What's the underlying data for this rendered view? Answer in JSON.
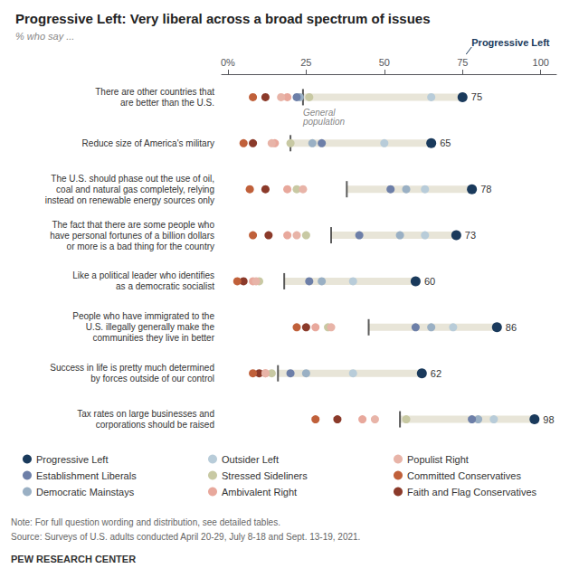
{
  "chart_data": {
    "type": "scatter",
    "orientation": "horizontal",
    "title": "Progressive Left: Very liberal across a broad spectrum of issues",
    "subtitle": "% who say ...",
    "categories": [
      "There are other countries that\nare better than the U.S.",
      "Reduce size of America's military",
      "The U.S. should phase out the use of oil,\ncoal and natural gas completely, relying\ninstead on renewable energy sources only",
      "The fact that there are some people who\nhave personal fortunes of a billion dollars\nor more is a bad thing for the country",
      "Like a political leader who identifies\nas a democratic socialist",
      "People who have immigrated to the\nU.S. illegally generally make the\ncommunities they live in better",
      "Success in life is pretty much determined\nby forces outside of our control",
      "Tax rates on large businesses and\ncorporations should be raised"
    ],
    "series": [
      {
        "name": "Progressive Left",
        "color": "#1a3a5c",
        "data_labels": true,
        "values": [
          75,
          65,
          78,
          73,
          60,
          86,
          62,
          98
        ]
      },
      {
        "name": "Outsider Left",
        "color": "#b8ccd9",
        "values": [
          65,
          50,
          63,
          63,
          40,
          72,
          40,
          85
        ]
      },
      {
        "name": "Populist Right",
        "color": "#e8b4a8",
        "values": [
          17,
          14,
          24,
          22,
          9,
          33,
          12,
          47
        ]
      },
      {
        "name": "Establishment Liberals",
        "color": "#6d7fa8",
        "values": [
          22,
          30,
          52,
          42,
          26,
          60,
          20,
          78
        ]
      },
      {
        "name": "Stressed Sideliners",
        "color": "#c8c9a3",
        "values": [
          26,
          20,
          22,
          25,
          10,
          32,
          14,
          57
        ]
      },
      {
        "name": "Committed Conservatives",
        "color": "#c0603a",
        "values": [
          8,
          5,
          7,
          8,
          3,
          22,
          8,
          28
        ]
      },
      {
        "name": "Democratic Mainstays",
        "color": "#9ab0c4",
        "values": [
          23,
          27,
          57,
          55,
          30,
          65,
          25,
          80
        ]
      },
      {
        "name": "Ambivalent Right",
        "color": "#e8a89c",
        "values": [
          19,
          15,
          19,
          19,
          8,
          28,
          12,
          43
        ]
      },
      {
        "name": "Faith and Flag Conservatives",
        "color": "#8b3a2a",
        "values": [
          12,
          8,
          12,
          13,
          5,
          25,
          10,
          35
        ]
      }
    ],
    "reference": {
      "marker": "line",
      "color": "#333333",
      "values": [
        24,
        20,
        38,
        33,
        18,
        45,
        16,
        55
      ]
    },
    "range_bars": {
      "color": "#e8e5d8",
      "values": [
        [
          24,
          75
        ],
        [
          20,
          65
        ],
        [
          38,
          78
        ],
        [
          33,
          73
        ],
        [
          18,
          60
        ],
        [
          45,
          86
        ],
        [
          16,
          62
        ],
        [
          55,
          98
        ]
      ]
    },
    "annotations": [
      {
        "text": "General\npopulation",
        "x": 24,
        "category": "There are other countries that\nare better than the U.S."
      },
      {
        "text": "Progressive Left",
        "x": 75,
        "color": "#1a3a5c"
      }
    ],
    "xlim": [
      -2,
      105
    ],
    "xticks": [
      {
        "value": 0,
        "label": "0%"
      },
      25,
      50,
      75,
      100
    ],
    "grid": false,
    "legend": "bottom",
    "note": "Note: For full question wording and distribution, see detailed tables.",
    "source": "Source: Surveys of U.S. adults conducted April 20-29, July 8-18 and Sept. 13-19, 2021.",
    "footer": "PEW RESEARCH CENTER"
  }
}
